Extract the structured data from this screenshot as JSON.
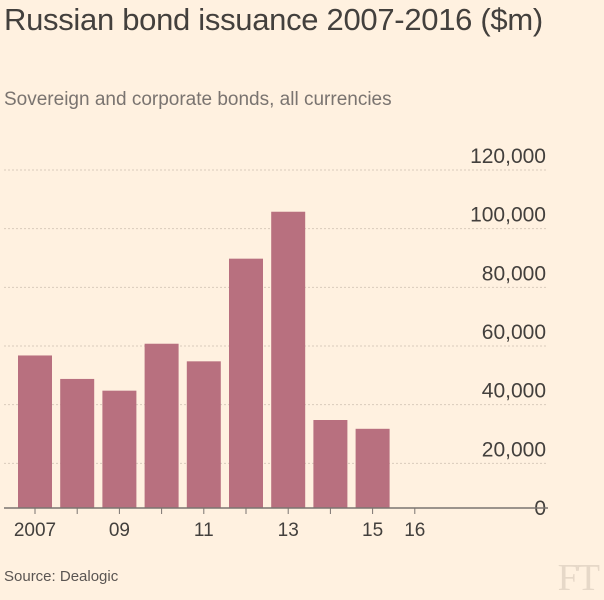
{
  "chart_data": {
    "type": "bar",
    "title": "Russian bond issuance 2007-2016 ($m)",
    "subtitle": "Sovereign and corporate bonds, all currencies",
    "source": "Source: Dealogic",
    "logo": "FT",
    "categories": [
      "2007",
      "2008",
      "2009",
      "2010",
      "2011",
      "2012",
      "2013",
      "2014",
      "2015",
      "2016"
    ],
    "x_tick_labels": [
      "2007",
      "",
      "09",
      "",
      "11",
      "",
      "13",
      "",
      "15",
      "16"
    ],
    "values": [
      52000,
      44000,
      40000,
      56000,
      50000,
      85000,
      101000,
      30000,
      27000,
      0
    ],
    "ylim": [
      0,
      120000
    ],
    "y_ticks": [
      0,
      20000,
      40000,
      60000,
      80000,
      100000,
      120000
    ],
    "y_tick_labels": [
      "0",
      "20,000",
      "40,000",
      "60,000",
      "80,000",
      "100,000",
      "120,000"
    ],
    "bar_color": "#b8707f",
    "grid": true,
    "grid_color": "#d9cbbb",
    "axis_color": "#7a7470"
  }
}
